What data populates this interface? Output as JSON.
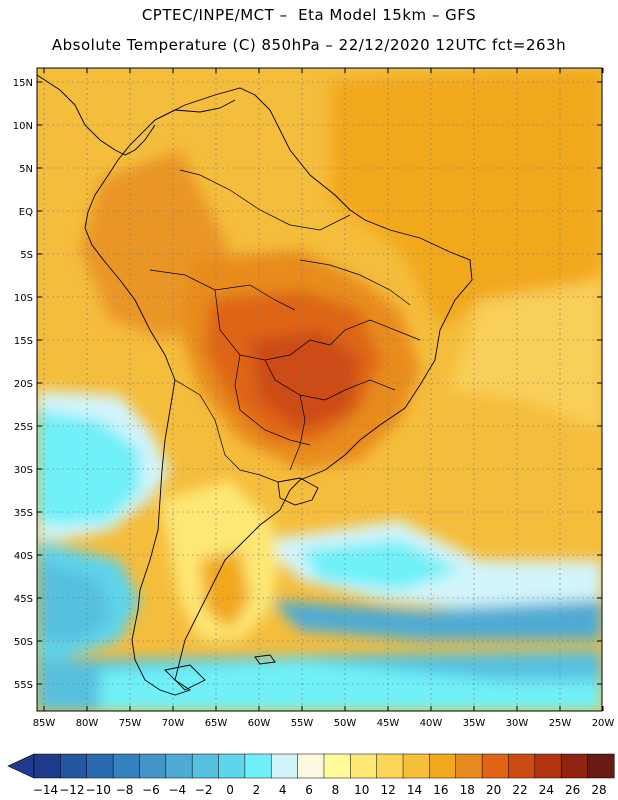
{
  "header": {
    "title_line1": "CPTEC/INPE/MCT –  Eta Model 15km – GFS",
    "title_line2": "Absolute Temperature (C) 850hPa – 22/12/2020 12UTC fct=263h"
  },
  "map": {
    "lat_labels": [
      "15N",
      "10N",
      "5N",
      "EQ",
      "5S",
      "10S",
      "15S",
      "20S",
      "25S",
      "30S",
      "35S",
      "40S",
      "45S",
      "50S",
      "55S"
    ],
    "lon_labels": [
      "85W",
      "80W",
      "75W",
      "70W",
      "65W",
      "60W",
      "55W",
      "50W",
      "45W",
      "40W",
      "35W",
      "30W",
      "25W",
      "20W"
    ]
  },
  "colorbar": {
    "labels": [
      "-14",
      "-12",
      "-10",
      "-8",
      "-6",
      "-4",
      "-2",
      "0",
      "2",
      "4",
      "6",
      "8",
      "10",
      "12",
      "14",
      "16",
      "18",
      "20",
      "22",
      "24",
      "26",
      "28"
    ],
    "colors": [
      "#1f3a8c",
      "#2456a2",
      "#2a6ab0",
      "#3580be",
      "#4596c8",
      "#4fabd3",
      "#56c0df",
      "#5fd4ea",
      "#6ff0f8",
      "#d2f4fb",
      "#fdf8e2",
      "#fffb9a",
      "#fde874",
      "#fcd45a",
      "#f6bf3a",
      "#f2a81c",
      "#e88b1e",
      "#df6514",
      "#cd4b12",
      "#b2340f",
      "#8f2410",
      "#6a1a12"
    ]
  }
}
